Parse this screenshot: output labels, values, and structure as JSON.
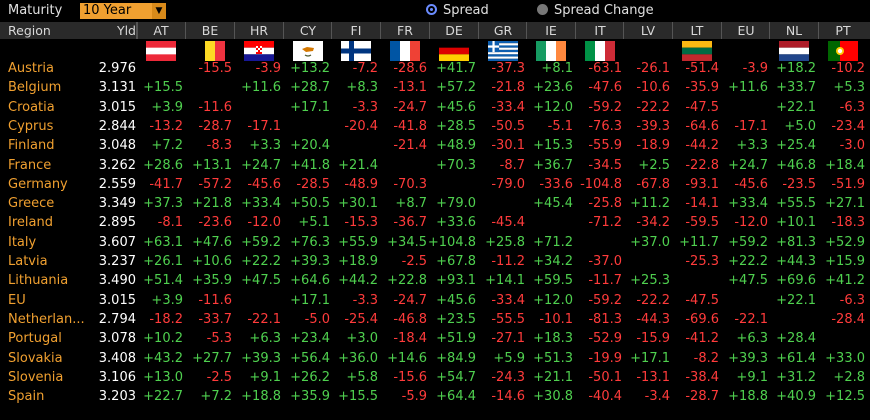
{
  "toolbar": {
    "maturity_label": "Maturity",
    "maturity_value": "10 Year",
    "spread_label": "Spread",
    "spread_change_label": "Spread Change",
    "selected": "Spread"
  },
  "table": {
    "region_header": "Region",
    "yld_header": "Yld",
    "columns": [
      {
        "code": "AT",
        "flag": "austria"
      },
      {
        "code": "BE",
        "flag": "belgium"
      },
      {
        "code": "HR",
        "flag": "croatia"
      },
      {
        "code": "CY",
        "flag": "cyprus"
      },
      {
        "code": "FI",
        "flag": "finland"
      },
      {
        "code": "FR",
        "flag": "france"
      },
      {
        "code": "DE",
        "flag": "germany"
      },
      {
        "code": "GR",
        "flag": "greece"
      },
      {
        "code": "IE",
        "flag": "ireland"
      },
      {
        "code": "IT",
        "flag": "italy"
      },
      {
        "code": "LV",
        "flag": ""
      },
      {
        "code": "LT",
        "flag": "lithuania"
      },
      {
        "code": "EU",
        "flag": ""
      },
      {
        "code": "NL",
        "flag": "netherlands"
      },
      {
        "code": "PT",
        "flag": "portugal"
      }
    ],
    "rows": [
      {
        "country": "Austria",
        "yld": "2.976",
        "values": [
          "",
          "-15.5",
          "-3.9",
          "+13.2",
          "-7.2",
          "-28.6",
          "+41.7",
          "-37.3",
          "+8.1",
          "-63.1",
          "-26.1",
          "-51.4",
          "-3.9",
          "+18.2",
          "-10.2"
        ]
      },
      {
        "country": "Belgium",
        "yld": "3.131",
        "values": [
          "+15.5",
          "",
          "+11.6",
          "+28.7",
          "+8.3",
          "-13.1",
          "+57.2",
          "-21.8",
          "+23.6",
          "-47.6",
          "-10.6",
          "-35.9",
          "+11.6",
          "+33.7",
          "+5.3"
        ]
      },
      {
        "country": "Croatia",
        "yld": "3.015",
        "values": [
          "+3.9",
          "-11.6",
          "",
          "+17.1",
          "-3.3",
          "-24.7",
          "+45.6",
          "-33.4",
          "+12.0",
          "-59.2",
          "-22.2",
          "-47.5",
          "",
          "+22.1",
          "-6.3"
        ]
      },
      {
        "country": "Cyprus",
        "yld": "2.844",
        "values": [
          "-13.2",
          "-28.7",
          "-17.1",
          "",
          "-20.4",
          "-41.8",
          "+28.5",
          "-50.5",
          "-5.1",
          "-76.3",
          "-39.3",
          "-64.6",
          "-17.1",
          "+5.0",
          "-23.4"
        ]
      },
      {
        "country": "Finland",
        "yld": "3.048",
        "values": [
          "+7.2",
          "-8.3",
          "+3.3",
          "+20.4",
          "",
          "-21.4",
          "+48.9",
          "-30.1",
          "+15.3",
          "-55.9",
          "-18.9",
          "-44.2",
          "+3.3",
          "+25.4",
          "-3.0"
        ]
      },
      {
        "country": "France",
        "yld": "3.262",
        "values": [
          "+28.6",
          "+13.1",
          "+24.7",
          "+41.8",
          "+21.4",
          "",
          "+70.3",
          "-8.7",
          "+36.7",
          "-34.5",
          "+2.5",
          "-22.8",
          "+24.7",
          "+46.8",
          "+18.4"
        ]
      },
      {
        "country": "Germany",
        "yld": "2.559",
        "values": [
          "-41.7",
          "-57.2",
          "-45.6",
          "-28.5",
          "-48.9",
          "-70.3",
          "",
          "-79.0",
          "-33.6",
          "-104.8",
          "-67.8",
          "-93.1",
          "-45.6",
          "-23.5",
          "-51.9"
        ]
      },
      {
        "country": "Greece",
        "yld": "3.349",
        "values": [
          "+37.3",
          "+21.8",
          "+33.4",
          "+50.5",
          "+30.1",
          "+8.7",
          "+79.0",
          "",
          "+45.4",
          "-25.8",
          "+11.2",
          "-14.1",
          "+33.4",
          "+55.5",
          "+27.1"
        ]
      },
      {
        "country": "Ireland",
        "yld": "2.895",
        "values": [
          "-8.1",
          "-23.6",
          "-12.0",
          "+5.1",
          "-15.3",
          "-36.7",
          "+33.6",
          "-45.4",
          "",
          "-71.2",
          "-34.2",
          "-59.5",
          "-12.0",
          "+10.1",
          "-18.3"
        ]
      },
      {
        "country": "Italy",
        "yld": "3.607",
        "values": [
          "+63.1",
          "+47.6",
          "+59.2",
          "+76.3",
          "+55.9",
          "+34.5",
          "+104.8",
          "+25.8",
          "+71.2",
          "",
          "+37.0",
          "+11.7",
          "+59.2",
          "+81.3",
          "+52.9"
        ]
      },
      {
        "country": "Latvia",
        "yld": "3.237",
        "values": [
          "+26.1",
          "+10.6",
          "+22.2",
          "+39.3",
          "+18.9",
          "-2.5",
          "+67.8",
          "-11.2",
          "+34.2",
          "-37.0",
          "",
          "-25.3",
          "+22.2",
          "+44.3",
          "+15.9"
        ]
      },
      {
        "country": "Lithuania",
        "yld": "3.490",
        "values": [
          "+51.4",
          "+35.9",
          "+47.5",
          "+64.6",
          "+44.2",
          "+22.8",
          "+93.1",
          "+14.1",
          "+59.5",
          "-11.7",
          "+25.3",
          "",
          "+47.5",
          "+69.6",
          "+41.2"
        ]
      },
      {
        "country": "EU",
        "yld": "3.015",
        "values": [
          "+3.9",
          "-11.6",
          "",
          "+17.1",
          "-3.3",
          "-24.7",
          "+45.6",
          "-33.4",
          "+12.0",
          "-59.2",
          "-22.2",
          "-47.5",
          "",
          "+22.1",
          "-6.3"
        ]
      },
      {
        "country": "Netherlan...",
        "yld": "2.794",
        "values": [
          "-18.2",
          "-33.7",
          "-22.1",
          "-5.0",
          "-25.4",
          "-46.8",
          "+23.5",
          "-55.5",
          "-10.1",
          "-81.3",
          "-44.3",
          "-69.6",
          "-22.1",
          "",
          "-28.4"
        ]
      },
      {
        "country": "Portugal",
        "yld": "3.078",
        "values": [
          "+10.2",
          "-5.3",
          "+6.3",
          "+23.4",
          "+3.0",
          "-18.4",
          "+51.9",
          "-27.1",
          "+18.3",
          "-52.9",
          "-15.9",
          "-41.2",
          "+6.3",
          "+28.4",
          ""
        ]
      },
      {
        "country": "Slovakia",
        "yld": "3.408",
        "values": [
          "+43.2",
          "+27.7",
          "+39.3",
          "+56.4",
          "+36.0",
          "+14.6",
          "+84.9",
          "+5.9",
          "+51.3",
          "-19.9",
          "+17.1",
          "-8.2",
          "+39.3",
          "+61.4",
          "+33.0"
        ]
      },
      {
        "country": "Slovenia",
        "yld": "3.106",
        "values": [
          "+13.0",
          "-2.5",
          "+9.1",
          "+26.2",
          "+5.8",
          "-15.6",
          "+54.7",
          "-24.3",
          "+21.1",
          "-50.1",
          "-13.1",
          "-38.4",
          "+9.1",
          "+31.2",
          "+2.8"
        ]
      },
      {
        "country": "Spain",
        "yld": "3.203",
        "values": [
          "+22.7",
          "+7.2",
          "+18.8",
          "+35.9",
          "+15.5",
          "-5.9",
          "+64.4",
          "-14.6",
          "+30.8",
          "-40.4",
          "-3.4",
          "-28.7",
          "+18.8",
          "+40.9",
          "+12.5"
        ]
      }
    ]
  },
  "colors": {
    "positive": "#4fd04f",
    "negative": "#ff3b3b",
    "country": "#f0a030",
    "select_bg": "#f0a030"
  }
}
